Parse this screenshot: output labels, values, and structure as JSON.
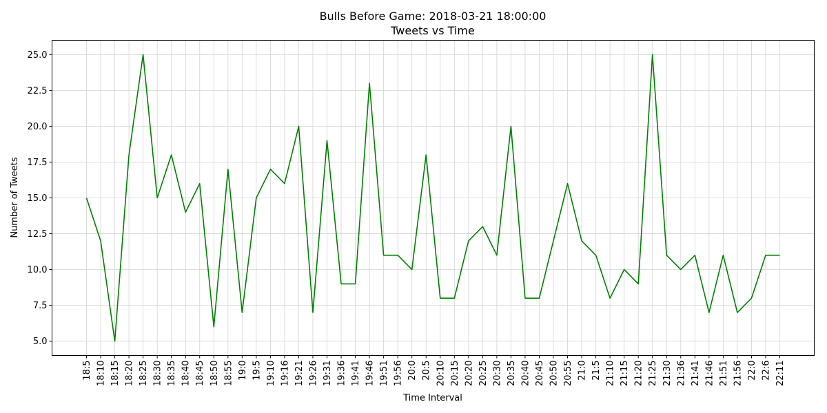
{
  "chart_data": {
    "type": "line",
    "title_line1": "Bulls Before Game: 2018-03-21 18:00:00",
    "title_line2": "Tweets vs Time",
    "xlabel": "Time Interval",
    "ylabel": "Number of Tweets",
    "ylim": [
      4.0,
      26.0
    ],
    "yticks": [
      5.0,
      7.5,
      10.0,
      12.5,
      15.0,
      17.5,
      20.0,
      22.5,
      25.0
    ],
    "ytick_labels": [
      "5.0",
      "7.5",
      "10.0",
      "12.5",
      "15.0",
      "17.5",
      "20.0",
      "22.5",
      "25.0"
    ],
    "grid": true,
    "line_color": "#008000",
    "categories": [
      "18:5",
      "18:10",
      "18:15",
      "18:20",
      "18:25",
      "18:30",
      "18:35",
      "18:40",
      "18:45",
      "18:50",
      "18:55",
      "19:0",
      "19:5",
      "19:10",
      "19:16",
      "19:21",
      "19:26",
      "19:31",
      "19:36",
      "19:41",
      "19:46",
      "19:51",
      "19:56",
      "20:0",
      "20:5",
      "20:10",
      "20:15",
      "20:20",
      "20:25",
      "20:30",
      "20:35",
      "20:40",
      "20:45",
      "20:50",
      "20:55",
      "21:0",
      "21:5",
      "21:10",
      "21:15",
      "21:20",
      "21:25",
      "21:30",
      "21:36",
      "21:41",
      "21:46",
      "21:51",
      "21:56",
      "22:0",
      "22:6",
      "22:11"
    ],
    "values": [
      15,
      12,
      5,
      18,
      25,
      15,
      18,
      14,
      16,
      6,
      17,
      7,
      15,
      17,
      16,
      20,
      7,
      19,
      9,
      9,
      23,
      11,
      11,
      10,
      18,
      8,
      8,
      12,
      13,
      11,
      20,
      8,
      8,
      12,
      16,
      12,
      11,
      8,
      10,
      9,
      25,
      11,
      10,
      11,
      7,
      11,
      7,
      8,
      11,
      11
    ]
  }
}
